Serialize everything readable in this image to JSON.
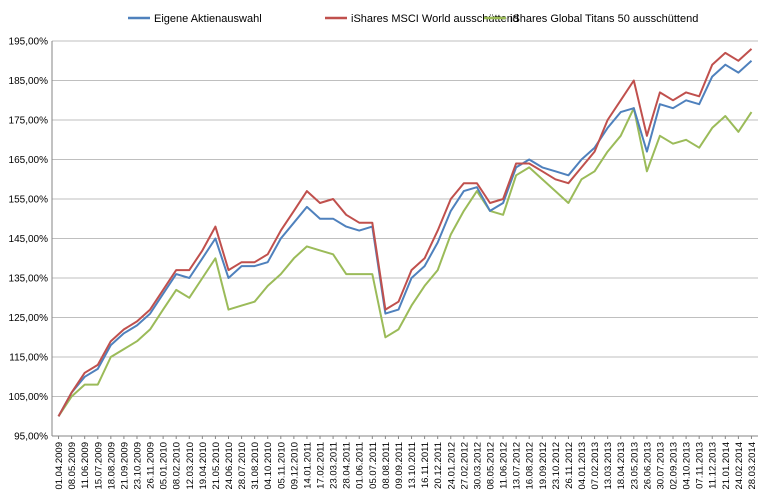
{
  "chart_data": {
    "type": "line",
    "title": "",
    "xlabel": "",
    "ylabel": "",
    "ylim": [
      95,
      195
    ],
    "y_ticks": [
      95,
      105,
      115,
      125,
      135,
      145,
      155,
      165,
      175,
      185,
      195
    ],
    "y_tick_labels": [
      "95,00%",
      "105,00%",
      "115,00%",
      "125,00%",
      "135,00%",
      "145,00%",
      "155,00%",
      "165,00%",
      "175,00%",
      "185,00%",
      "195,00%"
    ],
    "grid": "horizontal",
    "legend_position": "top",
    "x_tick_labels": [
      "01.04.2009",
      "08.05.2009",
      "11.06.2009",
      "15.07.2009",
      "18.08.2009",
      "21.09.2009",
      "23.10.2009",
      "26.11.2009",
      "05.01.2010",
      "08.02.2010",
      "12.03.2010",
      "19.04.2010",
      "21.05.2010",
      "24.06.2010",
      "28.07.2010",
      "31.08.2010",
      "04.10.2010",
      "05.11.2010",
      "09.12.2010",
      "14.01.2011",
      "17.02.2011",
      "23.03.2011",
      "28.04.2011",
      "01.06.2011",
      "05.07.2011",
      "08.08.2011",
      "09.09.2011",
      "13.10.2011",
      "16.11.2011",
      "20.12.2011",
      "24.01.2012",
      "27.02.2012",
      "30.03.2012",
      "08.05.2012",
      "11.06.2012",
      "13.07.2012",
      "16.08.2012",
      "19.09.2012",
      "23.10.2012",
      "26.11.2012",
      "04.01.2013",
      "07.02.2013",
      "13.03.2013",
      "18.04.2013",
      "23.05.2013",
      "26.06.2013",
      "30.07.2013",
      "02.09.2013",
      "04.10.2013",
      "07.11.2013",
      "11.12.2013",
      "21.01.2014",
      "24.02.2014",
      "28.03.2014"
    ],
    "series": [
      {
        "name": "Eigene Aktienauswahl",
        "color": "#4f81bd",
        "values": [
          100,
          106,
          110,
          112,
          118,
          121,
          123,
          126,
          131,
          136,
          135,
          140,
          145,
          135,
          138,
          138,
          139,
          145,
          149,
          153,
          150,
          150,
          148,
          147,
          148,
          126,
          127,
          135,
          138,
          144,
          152,
          157,
          158,
          152,
          154,
          163,
          165,
          163,
          162,
          161,
          165,
          168,
          173,
          177,
          178,
          167,
          179,
          178,
          180,
          179,
          186,
          189,
          187,
          190
        ]
      },
      {
        "name": "iShares MSCI World ausschüttend",
        "color": "#c0504d",
        "values": [
          100,
          106,
          111,
          113,
          119,
          122,
          124,
          127,
          132,
          137,
          137,
          142,
          148,
          137,
          139,
          139,
          141,
          147,
          152,
          157,
          154,
          155,
          151,
          149,
          149,
          127,
          129,
          137,
          140,
          147,
          155,
          159,
          159,
          154,
          155,
          164,
          164,
          162,
          160,
          159,
          163,
          167,
          175,
          180,
          185,
          171,
          182,
          180,
          182,
          181,
          189,
          192,
          190,
          193
        ]
      },
      {
        "name": "iShares Global Titans 50 ausschüttend",
        "color": "#9bbb59",
        "values": [
          100,
          105,
          108,
          108,
          115,
          117,
          119,
          122,
          127,
          132,
          130,
          135,
          140,
          127,
          128,
          129,
          133,
          136,
          140,
          143,
          142,
          141,
          136,
          136,
          136,
          120,
          122,
          128,
          133,
          137,
          146,
          152,
          157,
          152,
          151,
          161,
          163,
          160,
          157,
          154,
          160,
          162,
          167,
          171,
          178,
          162,
          171,
          169,
          170,
          168,
          173,
          176,
          172,
          177
        ]
      }
    ]
  }
}
